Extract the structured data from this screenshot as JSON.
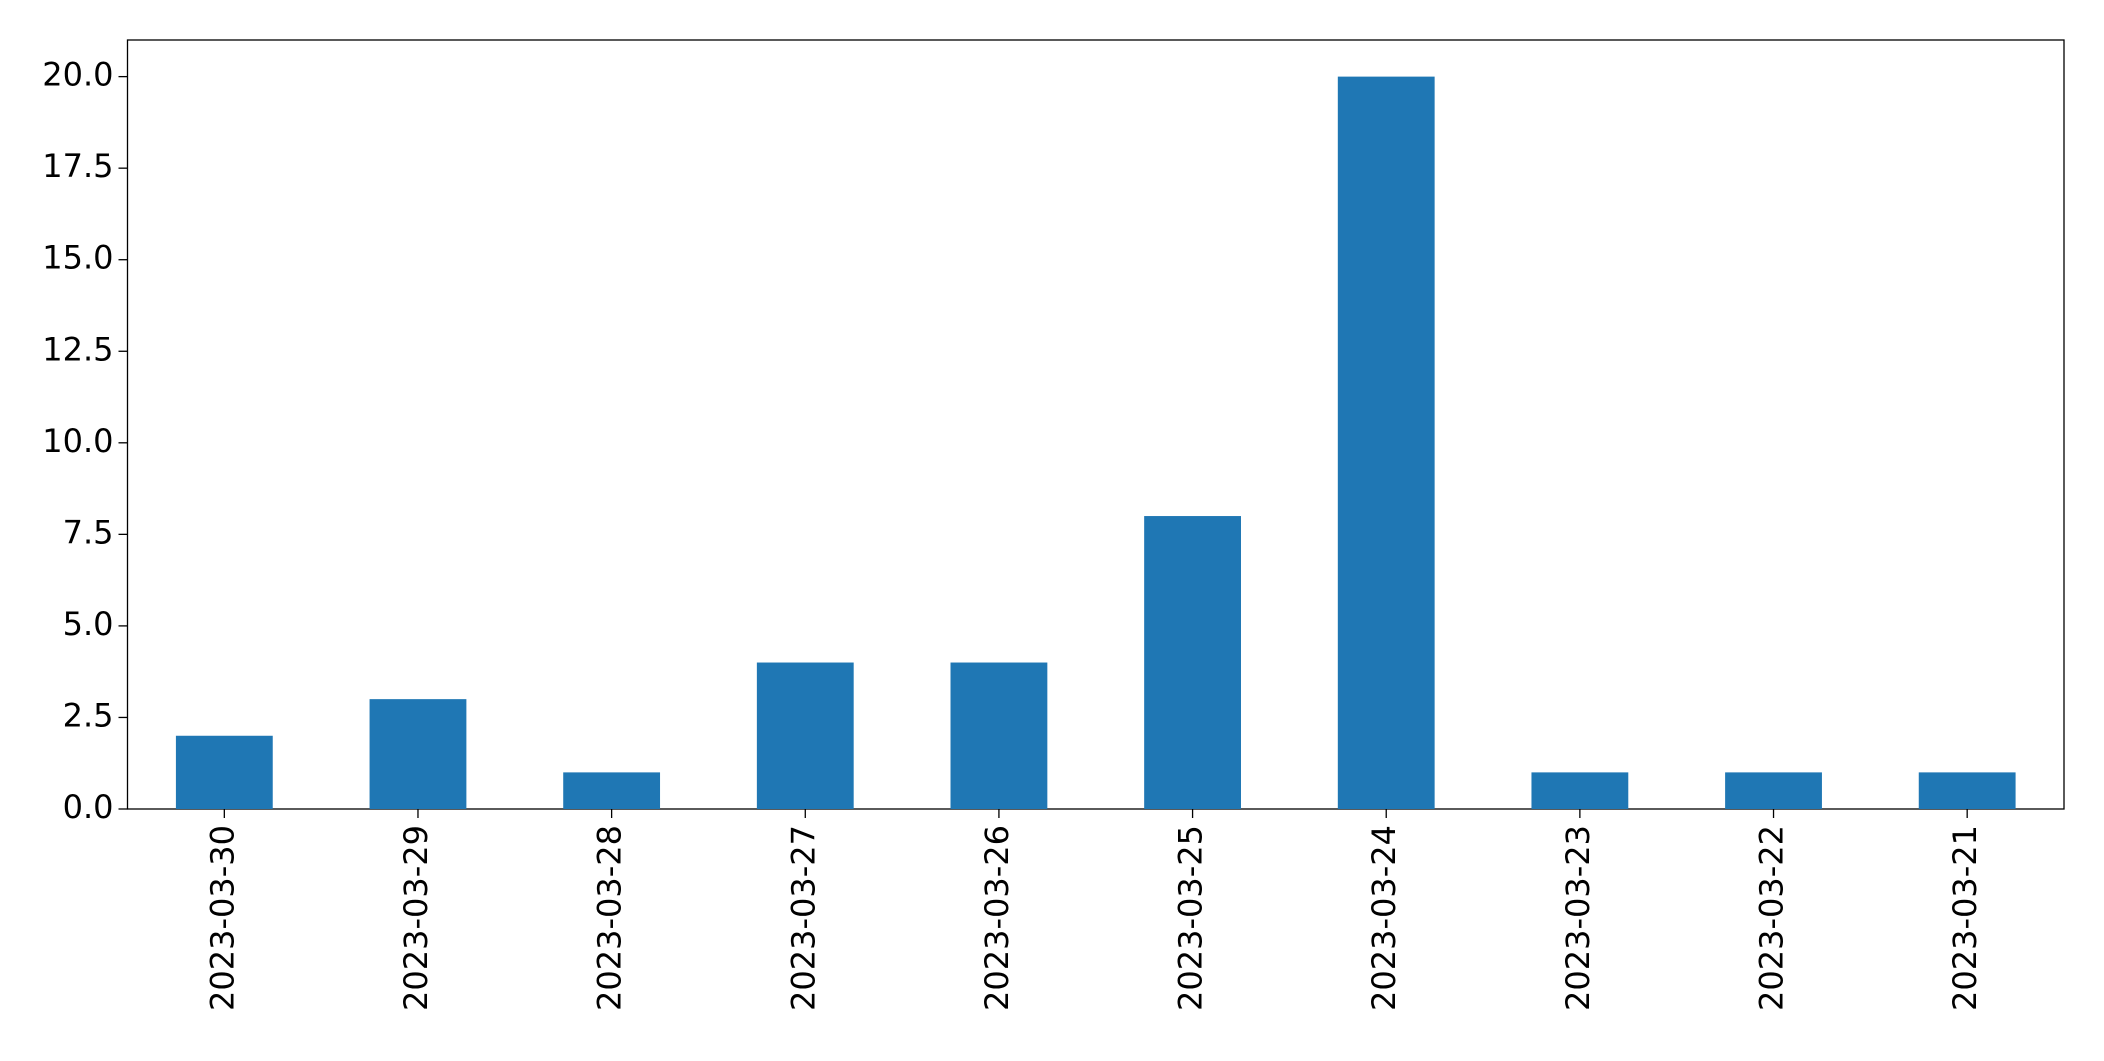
{
  "chart_data": {
    "type": "bar",
    "categories": [
      "2023-03-30",
      "2023-03-29",
      "2023-03-28",
      "2023-03-27",
      "2023-03-26",
      "2023-03-25",
      "2023-03-24",
      "2023-03-23",
      "2023-03-22",
      "2023-03-21"
    ],
    "values": [
      2,
      3,
      1,
      4,
      4,
      8,
      20,
      1,
      1,
      1
    ],
    "color": "#1f77b4",
    "ylim": [
      0,
      21
    ],
    "yticks": [
      {
        "value": 0,
        "label": "0.0"
      },
      {
        "value": 2.5,
        "label": "2.5"
      },
      {
        "value": 5,
        "label": "5.0"
      },
      {
        "value": 7.5,
        "label": "7.5"
      },
      {
        "value": 10,
        "label": "10.0"
      },
      {
        "value": 12.5,
        "label": "12.5"
      },
      {
        "value": 15,
        "label": "15.0"
      },
      {
        "value": 17.5,
        "label": "17.5"
      },
      {
        "value": 20,
        "label": "20.0"
      }
    ],
    "grid": false
  }
}
